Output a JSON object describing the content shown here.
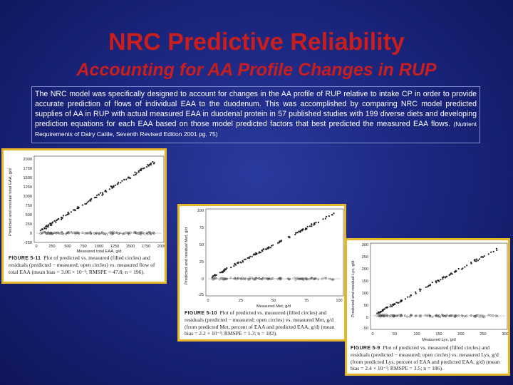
{
  "slide": {
    "title": "NRC Predictive Reliability",
    "subtitle": "Accounting for AA Profile Changes in RUP",
    "body_text": "The NRC model was specifically designed to account for changes in the AA profile of RUP relative to intake CP in order to provide accurate prediction of flows of individual EAA to the duodenum. This was accomplished by comparing NRC model predicted supplies of AA in RUP with actual measured EAA in duodenal protein in 57 published studies with 199 diverse diets and developing prediction equations for each EAA based on those model predicted factors that best predicted the measured EAA flows.",
    "citation": "(Nutrient Requirements of Dairy Cattle, Seventh Revised Edition 2001 pg. 75)"
  },
  "figures": [
    {
      "caption_label": "FIGURE 5-11",
      "caption_text": "Plot of predicted vs. measured (filled circles) and residuals (predicted − measured; open circles) vs. measured flow of total EAA (mean bias = 3.06 × 10⁻¹; RMSPE = 47.8; n = 196).",
      "xlabel": "Measured total EAA, g/d",
      "ylabel": "Predicted and residual total EAA, g/d",
      "xticks": [
        "0",
        "250",
        "500",
        "750",
        "1000",
        "1250",
        "1500",
        "1750",
        "2000"
      ],
      "yticks": [
        "2000",
        "1750",
        "1500",
        "1250",
        "1000",
        "750",
        "500",
        "250",
        "0",
        "-250"
      ],
      "xlim": [
        0,
        2000
      ],
      "ylim": [
        -250,
        2000
      ]
    },
    {
      "caption_label": "FIGURE 5-10",
      "caption_text": "Plot of predicted vs. measured (filled circles) and residuals (predicted − measured; open circles) vs. measured Met, g/d (from predicted Met, percent of EAA and predicted EAA, g/d) (mean bias = 2.2 × 10⁻³; RMSPE = 1.3; n = 182).",
      "xlabel": "Measured Met, g/d",
      "ylabel": "Predicted and residual Met, g/d",
      "xticks": [
        "0",
        "25",
        "50",
        "75",
        "100"
      ],
      "yticks": [
        "100",
        "75",
        "50",
        "25",
        "0",
        "-25"
      ],
      "xlim": [
        0,
        100
      ],
      "ylim": [
        -25,
        100
      ]
    },
    {
      "caption_label": "FIGURE 5-9",
      "caption_text": "Plot of predicted vs. measured (filled circles) and residuals (predicted − measured; open circles) vs. measured Lys, g/d (from predicted Lys, percent of EAA and predicted EAA, g/d) (mean bias = 2.4 × 10⁻³; RMSPE = 3.5; n = 186).",
      "xlabel": "Measured Lys, g/d",
      "ylabel": "Predicted and residual Lys, g/d",
      "xticks": [
        "0",
        "50",
        "100",
        "150",
        "200",
        "250",
        "300"
      ],
      "yticks": [
        "300",
        "250",
        "200",
        "150",
        "100",
        "50",
        "0",
        "-50"
      ],
      "xlim": [
        0,
        300
      ],
      "ylim": [
        -50,
        300
      ]
    }
  ]
}
